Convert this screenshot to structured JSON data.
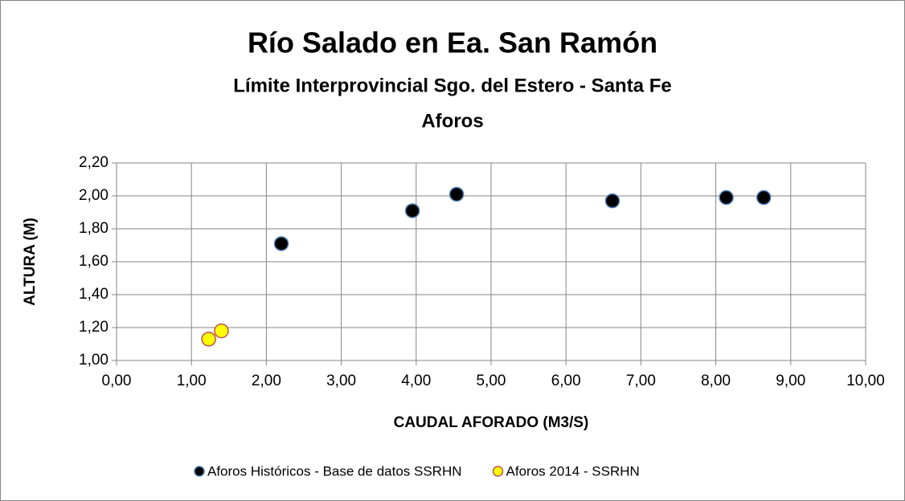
{
  "chart_data": {
    "type": "scatter",
    "title": "Río Salado en Ea. San Ramón",
    "subtitles": [
      "Límite Interprovincial Sgo. del Estero - Santa Fe",
      "Aforos"
    ],
    "x_label": "CAUDAL AFORADO (M3/S)",
    "y_label": "ALTURA (M)",
    "xlim": [
      0,
      10
    ],
    "ylim": [
      1,
      2.2
    ],
    "xticks": [
      {
        "value": 0,
        "label": "0,00"
      },
      {
        "value": 1,
        "label": "1,00"
      },
      {
        "value": 2,
        "label": "2,00"
      },
      {
        "value": 3,
        "label": "3,00"
      },
      {
        "value": 4,
        "label": "4,00"
      },
      {
        "value": 5,
        "label": "5,00"
      },
      {
        "value": 6,
        "label": "6,00"
      },
      {
        "value": 7,
        "label": "7,00"
      },
      {
        "value": 8,
        "label": "8,00"
      },
      {
        "value": 9,
        "label": "9,00"
      },
      {
        "value": 10,
        "label": "10,00"
      }
    ],
    "yticks": [
      {
        "value": 1,
        "label": "1,00"
      },
      {
        "value": 1.2,
        "label": "1,20"
      },
      {
        "value": 1.4,
        "label": "1,40"
      },
      {
        "value": 1.6,
        "label": "1,60"
      },
      {
        "value": 1.8,
        "label": "1,80"
      },
      {
        "value": 2,
        "label": "2,00"
      },
      {
        "value": 2.2,
        "label": "2,20"
      }
    ],
    "grid": true,
    "legend": "bottom",
    "series": [
      {
        "name": "Aforos Históricos - Base de datos SSRHN",
        "color": "#000000",
        "edge": "#4f81bd",
        "x": [
          2.2,
          3.95,
          4.54,
          6.62,
          8.14,
          8.64
        ],
        "values": [
          1.71,
          1.91,
          2.01,
          1.97,
          1.99,
          1.99
        ]
      },
      {
        "name": "Aforos 2014 - SSRHN",
        "color": "#ffff00",
        "edge": "#c0504d",
        "x": [
          1.23,
          1.4
        ],
        "values": [
          1.13,
          1.18
        ]
      }
    ]
  }
}
